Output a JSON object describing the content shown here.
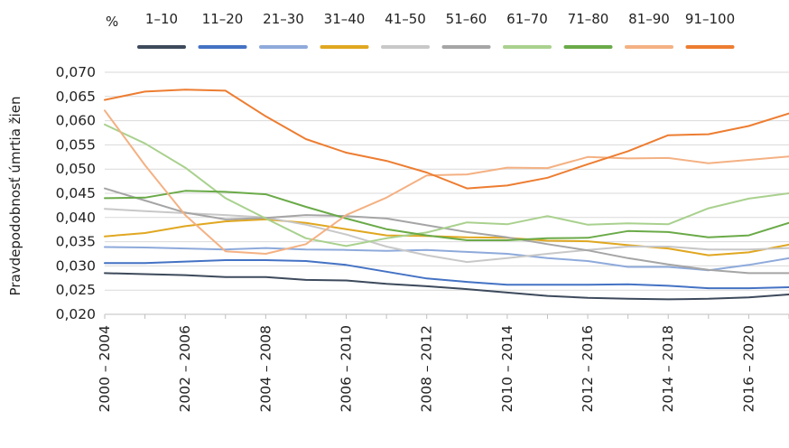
{
  "chart_data": {
    "type": "line",
    "legend_title": "%",
    "ylabel": "Pravdepodobnosť úmrtia žien",
    "xlabel": "",
    "title": "",
    "ylim": [
      0.02,
      0.07
    ],
    "y_ticks": [
      "0,020",
      "0,025",
      "0,030",
      "0,035",
      "0,040",
      "0,045",
      "0,050",
      "0,055",
      "0,060",
      "0,065",
      "0,070"
    ],
    "x": [
      "2000 – 2004",
      "2001 – 2005",
      "2002 – 2006",
      "2003 – 2007",
      "2004 – 2008",
      "2005 – 2009",
      "2006 – 2010",
      "2007 – 2011",
      "2008 – 2012",
      "2009 – 2013",
      "2010 – 2014",
      "2011 – 2015",
      "2012 – 2016",
      "2013 – 2017",
      "2014 – 2018",
      "2015 – 2019",
      "2016 – 2020",
      "2017 – 2021"
    ],
    "x_tick_labels": [
      "2000 – 2004",
      "2002 – 2006",
      "2004 – 2008",
      "2006 – 2010",
      "2008 – 2012",
      "2010 – 2014",
      "2012 – 2016",
      "2014 – 2018",
      "2016 – 2020"
    ],
    "grid": "horizontal",
    "legend_position": "top",
    "series": [
      {
        "name": "1–10",
        "color": "#3d4a5c",
        "values": [
          0.0285,
          0.0283,
          0.0281,
          0.0277,
          0.0277,
          0.0271,
          0.027,
          0.0263,
          0.0258,
          0.0252,
          0.0245,
          0.0238,
          0.0234,
          0.0232,
          0.0231,
          0.0232,
          0.0235,
          0.0241
        ]
      },
      {
        "name": "11–20",
        "color": "#4472c4",
        "values": [
          0.0306,
          0.0306,
          0.0309,
          0.0312,
          0.0312,
          0.031,
          0.0302,
          0.0288,
          0.0274,
          0.0267,
          0.0261,
          0.0261,
          0.0261,
          0.0262,
          0.0259,
          0.0254,
          0.0254,
          0.0256
        ]
      },
      {
        "name": "21–30",
        "color": "#8eaadb",
        "values": [
          0.0339,
          0.0338,
          0.0336,
          0.0334,
          0.0337,
          0.0334,
          0.0333,
          0.0331,
          0.0333,
          0.0329,
          0.0325,
          0.0316,
          0.031,
          0.0298,
          0.0298,
          0.0291,
          0.0302,
          0.0316
        ]
      },
      {
        "name": "31–40",
        "color": "#e0a720",
        "values": [
          0.0361,
          0.0368,
          0.0382,
          0.0392,
          0.0396,
          0.0389,
          0.0376,
          0.0363,
          0.0362,
          0.0359,
          0.0358,
          0.0352,
          0.0351,
          0.0343,
          0.0336,
          0.0322,
          0.0328,
          0.0344
        ]
      },
      {
        "name": "41–50",
        "color": "#c8c8c8",
        "values": [
          0.0418,
          0.0413,
          0.0409,
          0.0405,
          0.04,
          0.0385,
          0.0365,
          0.034,
          0.0322,
          0.0308,
          0.0316,
          0.0325,
          0.0333,
          0.034,
          0.034,
          0.0334,
          0.0334,
          0.0337
        ]
      },
      {
        "name": "51–60",
        "color": "#a5a5a5",
        "values": [
          0.046,
          0.0435,
          0.041,
          0.0396,
          0.0399,
          0.0405,
          0.0403,
          0.0398,
          0.0384,
          0.037,
          0.0359,
          0.0345,
          0.0332,
          0.0316,
          0.0303,
          0.0292,
          0.0285,
          0.0285
        ]
      },
      {
        "name": "61–70",
        "color": "#a9d18e",
        "values": [
          0.0592,
          0.0553,
          0.0503,
          0.044,
          0.0398,
          0.0357,
          0.0341,
          0.0357,
          0.0369,
          0.039,
          0.0386,
          0.0403,
          0.0385,
          0.0388,
          0.0386,
          0.0419,
          0.0439,
          0.045
        ]
      },
      {
        "name": "71–80",
        "color": "#6aaa48",
        "values": [
          0.044,
          0.0441,
          0.0455,
          0.0453,
          0.0448,
          0.0422,
          0.0398,
          0.0376,
          0.0363,
          0.0353,
          0.0353,
          0.0357,
          0.0358,
          0.0372,
          0.037,
          0.0359,
          0.0363,
          0.0389
        ]
      },
      {
        "name": "81–90",
        "color": "#f4b183",
        "values": [
          0.0621,
          0.0508,
          0.0405,
          0.033,
          0.0325,
          0.0345,
          0.0405,
          0.0441,
          0.0487,
          0.0489,
          0.0503,
          0.0502,
          0.0525,
          0.0522,
          0.0523,
          0.0512,
          0.0519,
          0.0526
        ]
      },
      {
        "name": "91–100",
        "color": "#ed7d31",
        "values": [
          0.0643,
          0.066,
          0.0664,
          0.0662,
          0.0609,
          0.0562,
          0.0534,
          0.0517,
          0.0493,
          0.046,
          0.0466,
          0.0482,
          0.051,
          0.0537,
          0.057,
          0.0572,
          0.0589,
          0.0615
        ]
      }
    ]
  }
}
